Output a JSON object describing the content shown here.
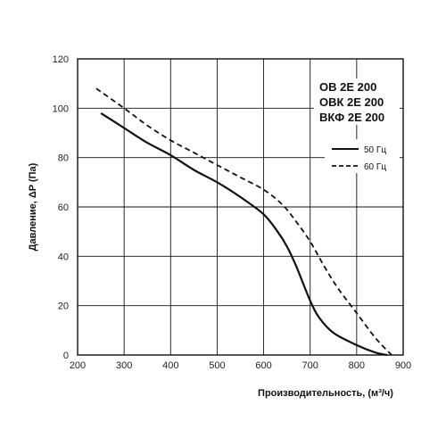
{
  "chart_data": {
    "type": "line",
    "xlabel": "Производительность, (м³/ч)",
    "ylabel": "Давление, ΔP (Па)",
    "xlim": [
      200,
      900
    ],
    "ylim": [
      0,
      120
    ],
    "x_ticks": [
      200,
      300,
      400,
      500,
      600,
      700,
      800,
      900
    ],
    "y_ticks": [
      0,
      20,
      40,
      60,
      80,
      100,
      120
    ],
    "grid": true,
    "model_labels": [
      "ОВ 2Е 200",
      "ОВК 2Е 200",
      "ВКФ 2Е 200"
    ],
    "legend_position": "right, below model labels",
    "series": [
      {
        "name": "50 Гц",
        "style": "solid",
        "color": "#111111",
        "x": [
          250,
          300,
          350,
          400,
          450,
          500,
          550,
          600,
          630,
          650,
          670,
          700,
          720,
          750,
          800,
          840,
          865
        ],
        "y": [
          98,
          92,
          86,
          81,
          75,
          70,
          64,
          57,
          50,
          44,
          36,
          22,
          15,
          9,
          4,
          1,
          0
        ]
      },
      {
        "name": "60 Гц",
        "style": "dashed",
        "color": "#111111",
        "x": [
          240,
          300,
          350,
          400,
          450,
          500,
          550,
          600,
          640,
          670,
          700,
          730,
          760,
          800,
          840,
          875
        ],
        "y": [
          108,
          100,
          93,
          87,
          82,
          77,
          72,
          67,
          61,
          54,
          46,
          36,
          27,
          17,
          7,
          0
        ]
      }
    ]
  }
}
